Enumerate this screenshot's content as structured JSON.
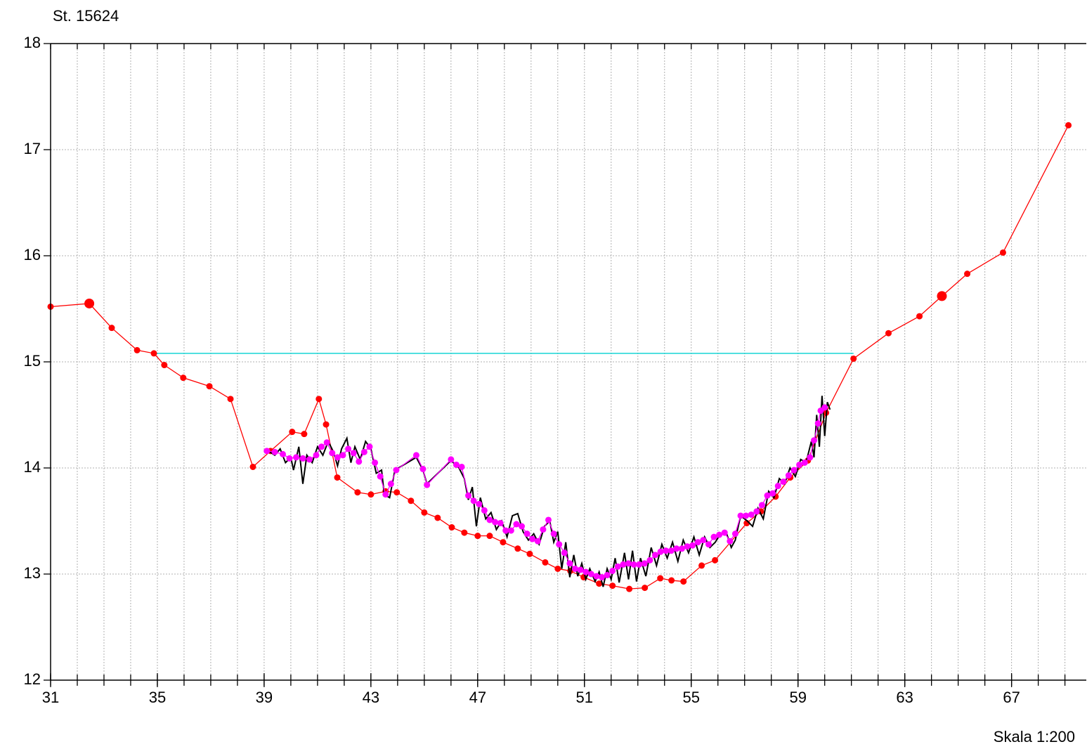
{
  "chart_data": {
    "type": "line",
    "title": "St. 15624",
    "annotation": "Skala 1:200",
    "xlim": [
      31,
      69.8
    ],
    "ylim": [
      12,
      18
    ],
    "xticks": [
      31,
      35,
      39,
      43,
      47,
      51,
      55,
      59,
      63,
      67
    ],
    "xminor_step": 1,
    "yticks": [
      12,
      13,
      14,
      15,
      16,
      17,
      18
    ],
    "grid": true,
    "series": [
      {
        "color": "#00d0d0",
        "marker": "none",
        "x": [
          34.87,
          61.08
        ],
        "values": [
          15.08,
          15.08
        ]
      },
      {
        "color": "#ff0000",
        "marker": "circle",
        "large_points": [
          1,
          52
        ],
        "x": [
          31,
          32.45,
          33.29,
          34.24,
          34.87,
          35.26,
          35.97,
          36.95,
          37.74,
          38.58,
          39.24,
          40.05,
          40.5,
          41.05,
          41.32,
          41.74,
          42.5,
          43.0,
          43.55,
          43.97,
          44.5,
          45.0,
          45.5,
          46.03,
          46.5,
          47.0,
          47.45,
          47.95,
          48.5,
          48.95,
          49.53,
          50.0,
          50.47,
          50.97,
          51.55,
          52.05,
          52.68,
          53.26,
          53.84,
          54.26,
          54.71,
          55.39,
          55.89,
          57.08,
          57.61,
          58.16,
          58.71,
          59.37,
          60.05,
          61.08,
          62.39,
          63.55,
          64.39,
          65.34,
          66.68,
          69.13
        ],
        "values": [
          15.52,
          15.55,
          15.32,
          15.11,
          15.08,
          14.97,
          14.85,
          14.77,
          14.65,
          14.01,
          14.16,
          14.34,
          14.32,
          14.65,
          14.41,
          13.91,
          13.77,
          13.75,
          13.78,
          13.77,
          13.69,
          13.58,
          13.53,
          13.44,
          13.39,
          13.36,
          13.36,
          13.3,
          13.24,
          13.19,
          13.11,
          13.05,
          13.03,
          12.97,
          12.91,
          12.89,
          12.86,
          12.87,
          12.96,
          12.94,
          12.93,
          13.08,
          13.13,
          13.48,
          13.59,
          13.73,
          13.91,
          14.07,
          14.52,
          15.03,
          15.27,
          15.43,
          15.62,
          15.83,
          16.03,
          17.23
        ]
      },
      {
        "color": "#000000",
        "marker": "none",
        "x": [
          39.1,
          39.4,
          39.6,
          39.8,
          40.0,
          40.1,
          40.3,
          40.45,
          40.6,
          40.8,
          41.0,
          41.2,
          41.4,
          41.6,
          41.75,
          41.9,
          42.1,
          42.25,
          42.4,
          42.6,
          42.8,
          43.0,
          43.2,
          43.4,
          43.5,
          43.7,
          43.9,
          44.7,
          44.95,
          45.1,
          46.0,
          46.3,
          46.5,
          46.65,
          46.8,
          46.95,
          47.1,
          47.3,
          47.5,
          47.7,
          47.9,
          48.1,
          48.3,
          48.5,
          48.7,
          48.9,
          49.1,
          49.3,
          49.5,
          49.7,
          49.85,
          50.0,
          50.15,
          50.3,
          50.45,
          50.6,
          50.75,
          50.9,
          51.05,
          51.2,
          51.4,
          51.55,
          51.7,
          51.85,
          52.0,
          52.15,
          52.3,
          52.5,
          52.65,
          52.8,
          52.95,
          53.1,
          53.3,
          53.5,
          53.7,
          53.9,
          54.1,
          54.3,
          54.5,
          54.7,
          54.9,
          55.1,
          55.3,
          55.5,
          55.7,
          55.9,
          56.1,
          56.3,
          56.5,
          56.65,
          56.85,
          57.1,
          57.3,
          57.5,
          57.7,
          57.9,
          58.1,
          58.3,
          58.5,
          58.7,
          58.9,
          59.1,
          59.3,
          59.5,
          59.6,
          59.7,
          59.8,
          59.9,
          60.0,
          60.1,
          60.2
        ],
        "values": [
          14.17,
          14.12,
          14.18,
          14.05,
          14.1,
          13.98,
          14.2,
          13.85,
          14.12,
          14.05,
          14.2,
          14.12,
          14.25,
          14.15,
          14.02,
          14.18,
          14.28,
          14.05,
          14.2,
          14.08,
          14.25,
          14.18,
          13.95,
          13.98,
          13.75,
          13.72,
          13.98,
          14.1,
          13.98,
          13.85,
          14.07,
          14.0,
          13.9,
          13.7,
          13.82,
          13.45,
          13.72,
          13.52,
          13.58,
          13.42,
          13.5,
          13.35,
          13.55,
          13.57,
          13.4,
          13.32,
          13.38,
          13.28,
          13.45,
          13.5,
          13.3,
          13.4,
          13.05,
          13.3,
          12.97,
          13.18,
          12.98,
          13.1,
          12.95,
          13.05,
          12.93,
          13.02,
          12.88,
          13.05,
          12.95,
          13.15,
          12.92,
          13.2,
          12.95,
          13.22,
          12.93,
          13.15,
          12.98,
          13.25,
          13.08,
          13.28,
          13.15,
          13.3,
          13.12,
          13.32,
          13.2,
          13.35,
          13.18,
          13.35,
          13.25,
          13.3,
          13.38,
          13.4,
          13.25,
          13.32,
          13.55,
          13.5,
          13.45,
          13.62,
          13.52,
          13.78,
          13.72,
          13.9,
          13.85,
          14.0,
          13.92,
          14.08,
          14.05,
          14.25,
          14.1,
          14.5,
          14.2,
          14.68,
          14.3,
          14.62,
          14.55
        ]
      },
      {
        "color": "#ff00ff",
        "marker": "circle",
        "x": [
          39.1,
          39.4,
          39.7,
          39.95,
          40.2,
          40.45,
          40.7,
          40.95,
          41.15,
          41.35,
          41.55,
          41.75,
          41.95,
          42.15,
          42.35,
          42.55,
          42.75,
          42.95,
          43.15,
          43.35,
          43.55,
          43.75,
          43.95,
          44.7,
          44.95,
          45.1,
          46.0,
          46.2,
          46.4,
          46.65,
          46.85,
          47.05,
          47.25,
          47.45,
          47.65,
          47.85,
          48.05,
          48.25,
          48.45,
          48.65,
          48.85,
          49.05,
          49.25,
          49.45,
          49.65,
          49.85,
          50.05,
          50.25,
          50.45,
          50.65,
          50.85,
          51.05,
          51.25,
          51.45,
          51.65,
          51.85,
          52.05,
          52.25,
          52.45,
          52.65,
          52.85,
          53.05,
          53.25,
          53.45,
          53.65,
          53.85,
          54.05,
          54.25,
          54.45,
          54.65,
          54.85,
          55.05,
          55.25,
          55.45,
          55.65,
          55.85,
          56.05,
          56.25,
          56.45,
          56.65,
          56.85,
          57.05,
          57.25,
          57.45,
          57.65,
          57.85,
          58.05,
          58.25,
          58.45,
          58.65,
          58.85,
          59.05,
          59.25,
          59.45,
          59.6,
          59.75,
          59.85,
          60.0
        ],
        "values": [
          14.16,
          14.15,
          14.13,
          14.09,
          14.1,
          14.09,
          14.08,
          14.12,
          14.2,
          14.24,
          14.14,
          14.1,
          14.12,
          14.18,
          14.14,
          14.06,
          14.15,
          14.2,
          14.05,
          13.92,
          13.75,
          13.85,
          13.98,
          14.12,
          13.99,
          13.84,
          14.08,
          14.03,
          14.01,
          13.74,
          13.69,
          13.66,
          13.6,
          13.51,
          13.49,
          13.48,
          13.41,
          13.41,
          13.47,
          13.45,
          13.38,
          13.33,
          13.31,
          13.42,
          13.51,
          13.38,
          13.28,
          13.2,
          13.1,
          13.05,
          13.04,
          13.02,
          13.0,
          12.98,
          12.97,
          12.99,
          13.03,
          13.07,
          13.09,
          13.1,
          13.09,
          13.09,
          13.1,
          13.13,
          13.18,
          13.21,
          13.22,
          13.22,
          13.24,
          13.24,
          13.26,
          13.27,
          13.3,
          13.32,
          13.28,
          13.35,
          13.37,
          13.39,
          13.31,
          13.38,
          13.55,
          13.55,
          13.56,
          13.59,
          13.65,
          13.74,
          13.76,
          13.83,
          13.87,
          13.93,
          13.98,
          14.03,
          14.05,
          14.1,
          14.26,
          14.42,
          14.54,
          14.57
        ]
      }
    ]
  }
}
